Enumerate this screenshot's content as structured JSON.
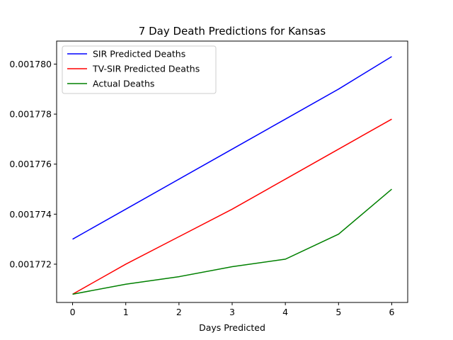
{
  "chart_data": {
    "type": "line",
    "title": "7 Day Death Predictions for Kansas",
    "xlabel": "Days Predicted",
    "ylabel": "",
    "x": [
      0,
      1,
      2,
      3,
      4,
      5,
      6
    ],
    "xticks": [
      "0",
      "1",
      "2",
      "3",
      "4",
      "5",
      "6"
    ],
    "yticks": [
      "0.001772",
      "0.001774",
      "0.001776",
      "0.001778",
      "0.001780"
    ],
    "ytick_values": [
      0.001772,
      0.001774,
      0.001776,
      0.001778,
      0.00178
    ],
    "xlim": [
      -0.3,
      6.3
    ],
    "ylim": [
      0.00177047,
      0.00178092
    ],
    "grid": false,
    "legend_position": "upper-left",
    "series": [
      {
        "name": "SIR Predicted Deaths",
        "color": "#0000ff",
        "values": [
          0.001773,
          0.0017742,
          0.0017754,
          0.0017766,
          0.0017778,
          0.001779,
          0.0017803
        ]
      },
      {
        "name": "TV-SIR Predicted Deaths",
        "color": "#ff0000",
        "values": [
          0.0017708,
          0.001772,
          0.0017731,
          0.0017742,
          0.0017754,
          0.0017766,
          0.0017778
        ]
      },
      {
        "name": "Actual Deaths",
        "color": "#008000",
        "values": [
          0.0017708,
          0.0017712,
          0.0017715,
          0.0017719,
          0.0017722,
          0.0017732,
          0.001775
        ]
      }
    ]
  }
}
